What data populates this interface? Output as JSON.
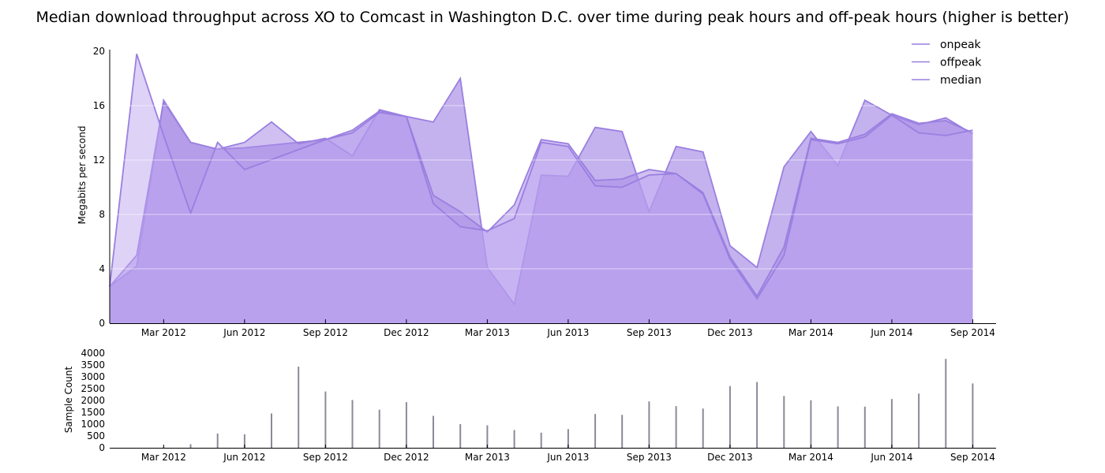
{
  "chart_data": [
    {
      "type": "area",
      "title": "Median download throughput across XO to Comcast in Washington D.C. over time during peak hours and off-peak hours (higher is better)",
      "xlabel": "",
      "ylabel": "Megabits per second",
      "ylim": [
        0,
        20
      ],
      "yticks": [
        "0",
        "4",
        "8",
        "12",
        "16",
        "20"
      ],
      "xticks": [
        "Mar 2012",
        "Jun 2012",
        "Sep 2012",
        "Dec 2012",
        "Mar 2013",
        "Jun 2013",
        "Sep 2013",
        "Dec 2013",
        "Mar 2014",
        "Jun 2014",
        "Sep 2014"
      ],
      "x": [
        "2012-01",
        "2012-02",
        "2012-03",
        "2012-04",
        "2012-05",
        "2012-06",
        "2012-07",
        "2012-08",
        "2012-09",
        "2012-10",
        "2012-11",
        "2012-12",
        "2013-01",
        "2013-02",
        "2013-03",
        "2013-04",
        "2013-05",
        "2013-06",
        "2013-07",
        "2013-08",
        "2013-09",
        "2013-10",
        "2013-11",
        "2013-12",
        "2014-01",
        "2014-02",
        "2014-03",
        "2014-04",
        "2014-05",
        "2014-06",
        "2014-07",
        "2014-08",
        "2014-09"
      ],
      "legend_position": "top-right",
      "grid": true,
      "series": [
        {
          "name": "onpeak",
          "color": "#9a7fe0",
          "values": [
            2.7,
            4.2,
            16.4,
            13.3,
            12.8,
            12.9,
            null,
            null,
            13.5,
            14.2,
            15.6,
            15.2,
            14.8,
            18.0,
            4.1,
            1.4,
            10.9,
            10.8,
            14.4,
            14.1,
            8.2,
            13.0,
            12.6,
            5.7,
            4.1,
            11.5,
            14.1,
            11.6,
            16.4,
            15.3,
            14.6,
            15.1,
            13.9
          ]
        },
        {
          "name": "offpeak",
          "color": "#9a7fe0",
          "values": [
            2.7,
            5.0,
            16.3,
            13.3,
            12.8,
            13.3,
            14.8,
            13.2,
            13.6,
            12.3,
            15.7,
            15.2,
            9.4,
            8.2,
            6.7,
            8.7,
            13.5,
            13.2,
            10.5,
            10.6,
            11.3,
            11.0,
            9.6,
            4.9,
            2.0,
            5.6,
            13.6,
            13.3,
            13.9,
            15.4,
            14.7,
            14.9,
            14.0
          ]
        },
        {
          "name": "median",
          "color": "#9a7fe0",
          "values": [
            2.7,
            19.8,
            13.8,
            8.1,
            13.3,
            11.3,
            null,
            null,
            13.5,
            14.0,
            15.5,
            15.2,
            8.8,
            7.1,
            6.8,
            7.7,
            13.3,
            13.0,
            10.1,
            10.0,
            10.9,
            11.0,
            9.5,
            4.7,
            1.8,
            5.0,
            13.5,
            13.2,
            13.7,
            15.3,
            14.0,
            13.8,
            14.2
          ]
        }
      ]
    },
    {
      "type": "bar",
      "ylabel": "Sample Count",
      "ylim": [
        0,
        4000
      ],
      "yticks": [
        "0",
        "500",
        "1000",
        "1500",
        "2000",
        "2500",
        "3000",
        "3500",
        "4000"
      ],
      "xticks": [
        "Mar 2012",
        "Jun 2012",
        "Sep 2012",
        "Dec 2012",
        "Mar 2013",
        "Jun 2013",
        "Sep 2013",
        "Dec 2013",
        "Mar 2014",
        "Jun 2014",
        "Sep 2014"
      ],
      "x": [
        "2012-03",
        "2012-04",
        "2012-05",
        "2012-06",
        "2012-07",
        "2012-08",
        "2012-09",
        "2012-10",
        "2012-11",
        "2012-12",
        "2013-01",
        "2013-02",
        "2013-03",
        "2013-04",
        "2013-05",
        "2013-06",
        "2013-07",
        "2013-08",
        "2013-09",
        "2013-10",
        "2013-11",
        "2013-12",
        "2014-01",
        "2014-02",
        "2014-03",
        "2014-04",
        "2014-05",
        "2014-06",
        "2014-07",
        "2014-08",
        "2014-09"
      ],
      "values": [
        20,
        150,
        600,
        570,
        1450,
        3430,
        2380,
        2020,
        1610,
        1930,
        1350,
        1000,
        950,
        750,
        640,
        790,
        1430,
        1390,
        1960,
        1760,
        1660,
        2610,
        2780,
        2190,
        2010,
        1750,
        1740,
        2060,
        2290,
        3760,
        2720
      ]
    }
  ]
}
